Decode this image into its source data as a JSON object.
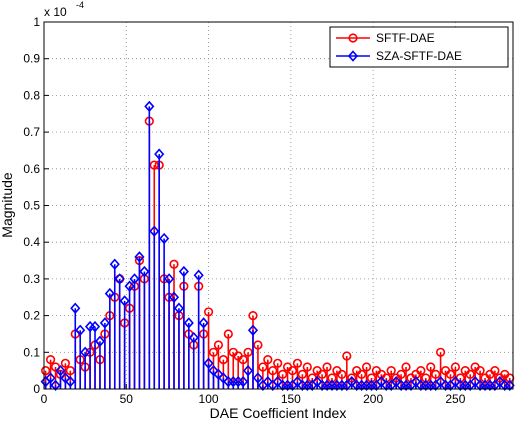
{
  "chart_data": {
    "type": "stem",
    "xlabel": "DAE Coefficient Index",
    "ylabel": "Magnitude",
    "y_multiplier": "x 10",
    "y_multiplier_exponent": "-4",
    "xlim": [
      0,
      285
    ],
    "ylim": [
      0,
      1
    ],
    "xticks": [
      0,
      50,
      100,
      150,
      200,
      250
    ],
    "yticks": [
      0,
      0.1,
      0.2,
      0.3,
      0.4,
      0.5,
      0.6,
      0.7,
      0.8,
      0.9,
      1
    ],
    "grid": true,
    "legend": "upper right",
    "x": [
      1,
      4,
      7,
      10,
      13,
      16,
      19,
      22,
      25,
      28,
      31,
      34,
      37,
      40,
      43,
      46,
      49,
      52,
      55,
      58,
      61,
      64,
      67,
      70,
      73,
      76,
      79,
      82,
      85,
      88,
      91,
      94,
      97,
      100,
      103,
      106,
      109,
      112,
      115,
      118,
      121,
      124,
      127,
      130,
      133,
      136,
      139,
      142,
      145,
      148,
      151,
      154,
      157,
      160,
      163,
      166,
      169,
      172,
      175,
      178,
      181,
      184,
      187,
      190,
      193,
      196,
      199,
      202,
      205,
      208,
      211,
      214,
      217,
      220,
      223,
      226,
      229,
      232,
      235,
      238,
      241,
      244,
      247,
      250,
      253,
      256,
      259,
      262,
      265,
      268,
      271,
      274,
      277,
      280,
      283
    ],
    "series": [
      {
        "name": "SFTF-DAE",
        "color": "#ff0000",
        "marker": "circle",
        "values": [
          0.05,
          0.08,
          0.06,
          0.04,
          0.07,
          0.05,
          0.15,
          0.08,
          0.06,
          0.1,
          0.12,
          0.08,
          0.15,
          0.2,
          0.25,
          0.3,
          0.18,
          0.22,
          0.28,
          0.35,
          0.3,
          0.73,
          0.61,
          0.61,
          0.3,
          0.25,
          0.34,
          0.2,
          0.28,
          0.15,
          0.12,
          0.28,
          0.15,
          0.21,
          0.1,
          0.12,
          0.08,
          0.15,
          0.1,
          0.09,
          0.08,
          0.1,
          0.2,
          0.12,
          0.06,
          0.08,
          0.05,
          0.07,
          0.04,
          0.06,
          0.05,
          0.07,
          0.04,
          0.06,
          0.03,
          0.05,
          0.04,
          0.06,
          0.03,
          0.05,
          0.04,
          0.09,
          0.03,
          0.05,
          0.04,
          0.06,
          0.03,
          0.05,
          0.04,
          0.03,
          0.05,
          0.03,
          0.04,
          0.06,
          0.03,
          0.04,
          0.05,
          0.03,
          0.06,
          0.04,
          0.1,
          0.05,
          0.04,
          0.06,
          0.03,
          0.05,
          0.04,
          0.06,
          0.05,
          0.03,
          0.04,
          0.05,
          0.03,
          0.04,
          0.03
        ]
      },
      {
        "name": "SZA-SFTF-DAE",
        "color": "#0000ff",
        "marker": "diamond",
        "values": [
          0.02,
          0.03,
          0.01,
          0.05,
          0.03,
          0.02,
          0.22,
          0.16,
          0.1,
          0.17,
          0.17,
          0.13,
          0.18,
          0.26,
          0.34,
          0.3,
          0.24,
          0.28,
          0.3,
          0.36,
          0.32,
          0.77,
          0.43,
          0.64,
          0.41,
          0.3,
          0.25,
          0.22,
          0.32,
          0.18,
          0.14,
          0.31,
          0.18,
          0.07,
          0.05,
          0.04,
          0.03,
          0.02,
          0.02,
          0.02,
          0.02,
          0.05,
          0.16,
          0.03,
          0.01,
          0.02,
          0.01,
          0.02,
          0.01,
          0.01,
          0.01,
          0.02,
          0.01,
          0.01,
          0.01,
          0.02,
          0.01,
          0.01,
          0.01,
          0.01,
          0.01,
          0.01,
          0.02,
          0.01,
          0.01,
          0.01,
          0.01,
          0.01,
          0.02,
          0.01,
          0.01,
          0.02,
          0.01,
          0.01,
          0.01,
          0.02,
          0.01,
          0.01,
          0.01,
          0.01,
          0.02,
          0.01,
          0.01,
          0.02,
          0.01,
          0.01,
          0.01,
          0.02,
          0.01,
          0.01,
          0.01,
          0.01,
          0.02,
          0.01,
          0.01
        ]
      }
    ]
  }
}
